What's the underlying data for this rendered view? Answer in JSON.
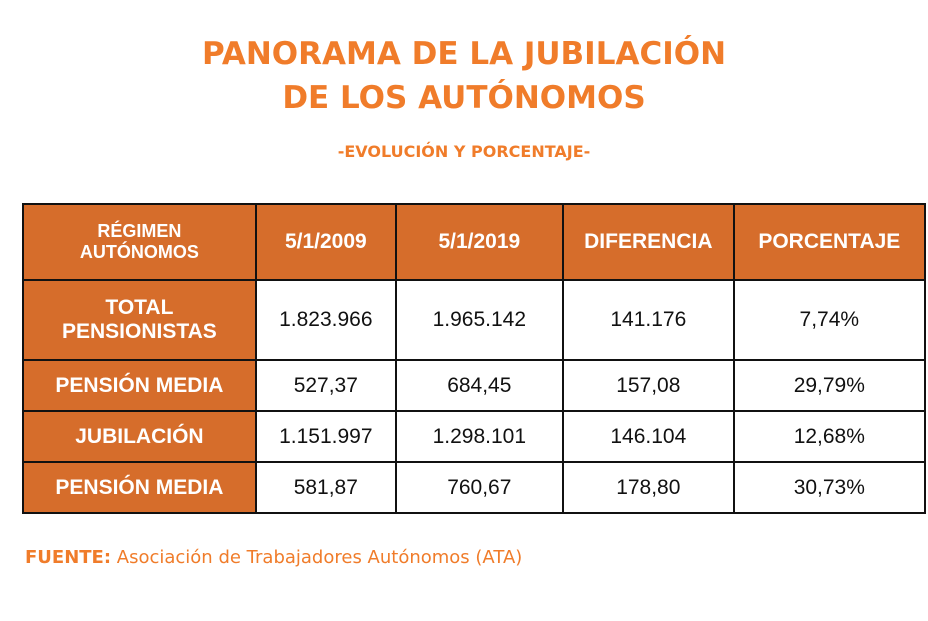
{
  "header": {
    "title_line1": "PANORAMA DE LA JUBILACIÓN",
    "title_line2": "DE LOS AUTÓNOMOS",
    "subtitle": "-EVOLUCIÓN Y PORCENTAJE-"
  },
  "colors": {
    "accent": "#f07c2a",
    "header_fill": "#d66d2b"
  },
  "chart_data": {
    "type": "table",
    "columns": [
      "RÉGIMEN AUTÓNOMOS",
      "5/1/2009",
      "5/1/2019",
      "DIFERENCIA",
      "PORCENTAJE"
    ],
    "rows": [
      [
        "TOTAL PENSIONISTAS",
        "1.823.966",
        "1.965.142",
        "141.176",
        "7,74%"
      ],
      [
        "PENSIÓN MEDIA",
        "527,37",
        "684,45",
        "157,08",
        "29,79%"
      ],
      [
        "JUBILACIÓN",
        "1.151.997",
        "1.298.101",
        "146.104",
        "12,68%"
      ],
      [
        "PENSIÓN MEDIA",
        "581,87",
        "760,67",
        "178,80",
        "30,73%"
      ]
    ]
  },
  "source": {
    "label": "FUENTE:",
    "text": " Asociación de Trabajadores Autónomos (ATA)"
  }
}
